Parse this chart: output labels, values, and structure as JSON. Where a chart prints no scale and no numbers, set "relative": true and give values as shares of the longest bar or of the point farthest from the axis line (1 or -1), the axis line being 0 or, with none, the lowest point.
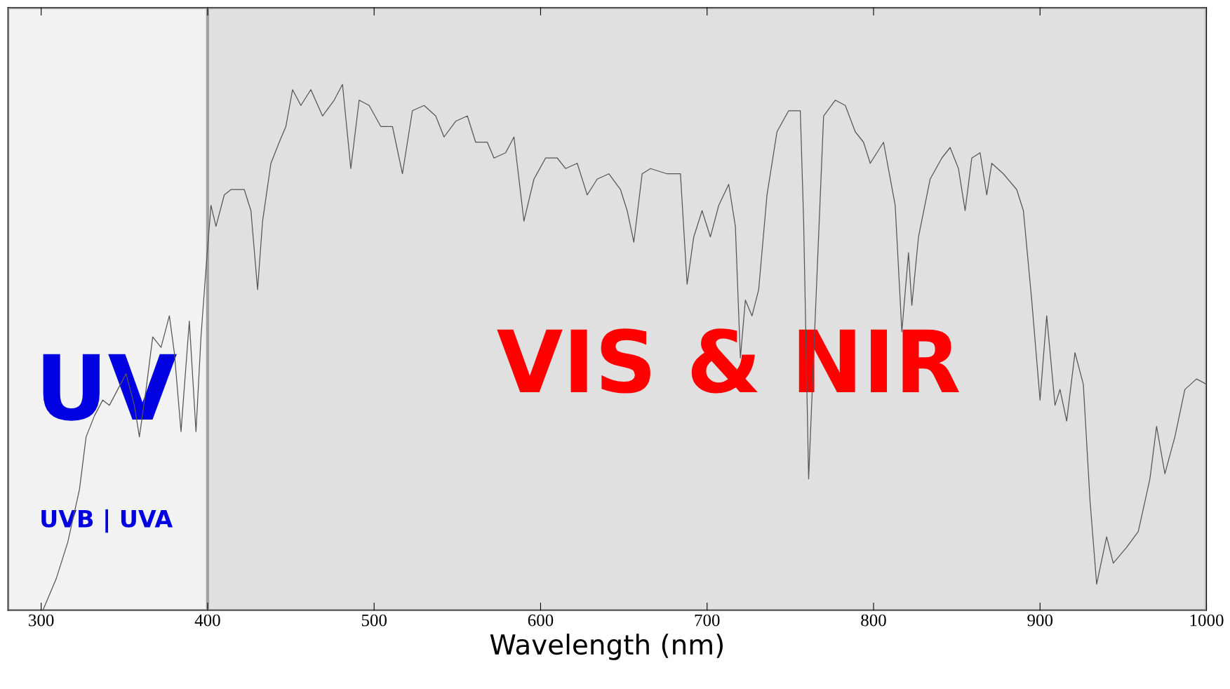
{
  "chart_data": {
    "type": "line",
    "relative": true,
    "xlabel": "Wavelength (nm)",
    "xlim": [
      280,
      1000
    ],
    "xticks": [
      300,
      400,
      500,
      600,
      700,
      800,
      900,
      1000
    ],
    "grid": false,
    "legend": false,
    "marker": "none",
    "line_style": "solid",
    "bands": [
      {
        "axis": "x",
        "from": 280,
        "to": 400,
        "label": "UV",
        "color": "#f2f2f2"
      },
      {
        "axis": "x",
        "from": 400,
        "to": 1000,
        "label": "VIS & NIR",
        "color": "#e0e0e0"
      }
    ],
    "annotations": [
      "UVB | UVA"
    ],
    "series": [
      {
        "color": "#555555",
        "x": [
          301,
          309,
          316,
          323,
          327,
          332,
          337,
          341,
          346,
          351,
          356,
          359,
          363,
          367,
          372,
          377,
          380,
          384,
          389,
          393,
          396,
          399,
          402,
          405,
          410,
          414,
          422,
          426,
          430,
          433,
          438,
          443,
          447,
          451,
          456,
          462,
          469,
          476,
          481,
          486,
          491,
          497,
          504,
          511,
          517,
          523,
          530,
          537,
          542,
          549,
          556,
          561,
          568,
          572,
          579,
          584,
          590,
          596,
          603,
          610,
          615,
          622,
          628,
          634,
          641,
          648,
          652,
          656,
          661,
          666,
          676,
          684,
          688,
          692,
          697,
          702,
          707,
          713,
          717,
          720,
          723,
          727,
          731,
          736,
          742,
          749,
          756,
          758,
          761,
          765,
          770,
          777,
          783,
          789,
          794,
          798,
          806,
          813,
          817,
          821,
          823,
          827,
          834,
          841,
          846,
          851,
          855,
          859,
          864,
          868,
          871,
          878,
          886,
          890,
          895,
          900,
          904,
          909,
          912,
          916,
          921,
          926,
          930,
          934,
          940,
          944,
          952,
          959,
          966,
          970,
          975,
          981,
          987,
          994,
          1000
        ],
        "values": [
          0.0,
          0.06,
          0.13,
          0.23,
          0.33,
          0.37,
          0.4,
          0.39,
          0.42,
          0.45,
          0.39,
          0.33,
          0.42,
          0.52,
          0.5,
          0.56,
          0.49,
          0.34,
          0.55,
          0.34,
          0.52,
          0.65,
          0.77,
          0.73,
          0.79,
          0.8,
          0.8,
          0.76,
          0.61,
          0.74,
          0.85,
          0.89,
          0.92,
          0.99,
          0.96,
          0.99,
          0.94,
          0.97,
          1.0,
          0.84,
          0.97,
          0.96,
          0.92,
          0.92,
          0.83,
          0.95,
          0.96,
          0.94,
          0.9,
          0.93,
          0.94,
          0.89,
          0.89,
          0.86,
          0.87,
          0.9,
          0.74,
          0.82,
          0.86,
          0.86,
          0.84,
          0.85,
          0.79,
          0.82,
          0.83,
          0.8,
          0.76,
          0.7,
          0.83,
          0.84,
          0.83,
          0.83,
          0.62,
          0.71,
          0.76,
          0.71,
          0.77,
          0.81,
          0.73,
          0.48,
          0.59,
          0.56,
          0.61,
          0.79,
          0.91,
          0.95,
          0.95,
          0.74,
          0.25,
          0.56,
          0.94,
          0.97,
          0.96,
          0.91,
          0.89,
          0.85,
          0.89,
          0.77,
          0.53,
          0.68,
          0.58,
          0.71,
          0.82,
          0.86,
          0.88,
          0.84,
          0.76,
          0.86,
          0.87,
          0.79,
          0.85,
          0.83,
          0.8,
          0.76,
          0.59,
          0.4,
          0.56,
          0.39,
          0.42,
          0.36,
          0.49,
          0.43,
          0.21,
          0.05,
          0.14,
          0.09,
          0.12,
          0.15,
          0.25,
          0.35,
          0.26,
          0.33,
          0.42,
          0.44,
          0.43
        ]
      }
    ]
  }
}
